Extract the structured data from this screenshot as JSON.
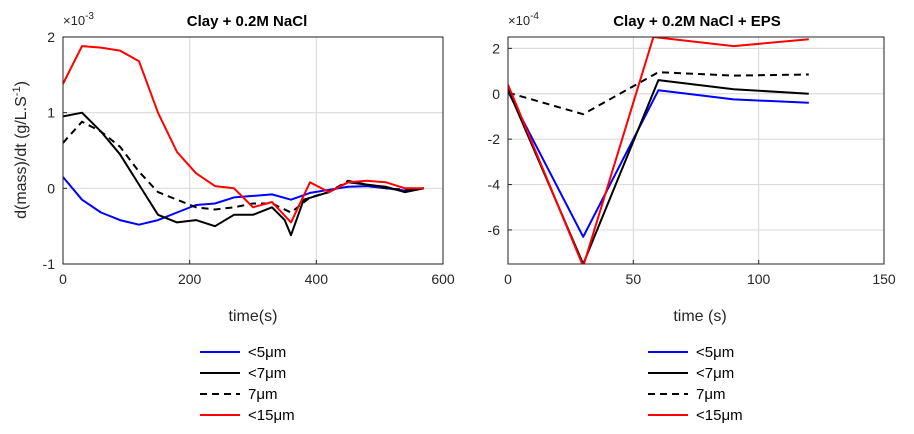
{
  "chart_data": [
    {
      "type": "line",
      "title": "Clay + 0.2M NaCl",
      "xlabel": "time(s)",
      "ylabel": "d(mass)/dt (g/L.S^-1)",
      "ylabel_main": "d(mass)/dt (g/L.S",
      "ylabel_sup": "-1",
      "ylabel_close": ")",
      "exponent_base": "×10",
      "exponent_power": "-3",
      "xlim": [
        0,
        600
      ],
      "ylim": [
        -1,
        2
      ],
      "xticks": [
        "0",
        "200",
        "400",
        "600"
      ],
      "yticks": [
        "-1",
        "0",
        "1",
        "2"
      ],
      "grid": true,
      "series": [
        {
          "name": "<5μm",
          "color": "#0000ff",
          "dash": "solid",
          "x": [
            0,
            30,
            60,
            90,
            120,
            150,
            180,
            210,
            240,
            270,
            300,
            330,
            360,
            390,
            420,
            450,
            480,
            510,
            540,
            570
          ],
          "y": [
            0.15,
            -0.15,
            -0.32,
            -0.42,
            -0.48,
            -0.42,
            -0.32,
            -0.22,
            -0.2,
            -0.12,
            -0.1,
            -0.08,
            -0.15,
            -0.06,
            -0.02,
            0.02,
            0.03,
            0.0,
            -0.03,
            0.0
          ]
        },
        {
          "name": "<7μm",
          "color": "#000000",
          "dash": "solid",
          "x": [
            0,
            30,
            60,
            90,
            120,
            150,
            180,
            210,
            240,
            270,
            300,
            330,
            350,
            360,
            380,
            400,
            420,
            450,
            480,
            510,
            540,
            570
          ],
          "y": [
            0.95,
            1.0,
            0.75,
            0.45,
            0.05,
            -0.35,
            -0.45,
            -0.42,
            -0.5,
            -0.35,
            -0.35,
            -0.25,
            -0.42,
            -0.62,
            -0.15,
            -0.1,
            -0.05,
            0.08,
            0.05,
            0.02,
            -0.05,
            0.0
          ]
        },
        {
          "name": "7μm",
          "color": "#000000",
          "dash": "dashed",
          "x": [
            0,
            30,
            60,
            90,
            120,
            150,
            180,
            210,
            240,
            270,
            300,
            330,
            360,
            390,
            420,
            450,
            480,
            510,
            540,
            570
          ],
          "y": [
            0.6,
            0.88,
            0.75,
            0.55,
            0.22,
            -0.05,
            -0.15,
            -0.25,
            -0.28,
            -0.25,
            -0.2,
            -0.2,
            -0.32,
            -0.12,
            -0.05,
            0.1,
            0.05,
            0.0,
            -0.02,
            0.0
          ]
        },
        {
          "name": "<15μm",
          "color": "#ff0000",
          "dash": "solid",
          "x": [
            0,
            30,
            60,
            90,
            120,
            150,
            180,
            210,
            240,
            270,
            300,
            330,
            360,
            390,
            420,
            450,
            480,
            510,
            540,
            570
          ],
          "y": [
            1.38,
            1.88,
            1.86,
            1.82,
            1.68,
            1.0,
            0.48,
            0.2,
            0.03,
            0.0,
            -0.25,
            -0.18,
            -0.45,
            0.08,
            -0.05,
            0.08,
            0.1,
            0.08,
            0.0,
            0.0
          ]
        }
      ]
    },
    {
      "type": "line",
      "title": "Clay + 0.2M NaCl + EPS",
      "xlabel": "time (s)",
      "ylabel": "",
      "exponent_base": "×10",
      "exponent_power": "-4",
      "xlim": [
        0,
        150
      ],
      "ylim": [
        -7.5,
        2.5
      ],
      "xticks": [
        "0",
        "50",
        "100",
        "150"
      ],
      "yticks": [
        "-6",
        "-4",
        "-2",
        "0",
        "2"
      ],
      "grid": true,
      "series": [
        {
          "name": "<5μm",
          "color": "#0000ff",
          "dash": "solid",
          "x": [
            0,
            30,
            60,
            90,
            120
          ],
          "y": [
            0.1,
            -6.3,
            0.15,
            -0.25,
            -0.4
          ]
        },
        {
          "name": "<7μm",
          "color": "#000000",
          "dash": "solid",
          "x": [
            0,
            30,
            60,
            90,
            120
          ],
          "y": [
            0.2,
            -7.5,
            0.6,
            0.2,
            0.0
          ]
        },
        {
          "name": "7μm",
          "color": "#000000",
          "dash": "dashed",
          "x": [
            0,
            30,
            60,
            90,
            120
          ],
          "y": [
            0.05,
            -0.9,
            0.95,
            0.8,
            0.85
          ]
        },
        {
          "name": "<15μm",
          "color": "#ff0000",
          "dash": "solid",
          "x": [
            0,
            30,
            58,
            90,
            120
          ],
          "y": [
            0.4,
            -7.6,
            2.5,
            2.1,
            2.4
          ]
        }
      ]
    }
  ],
  "legend_entries": [
    "<5μm",
    "<7μm",
    "7μm",
    "<15μm"
  ]
}
